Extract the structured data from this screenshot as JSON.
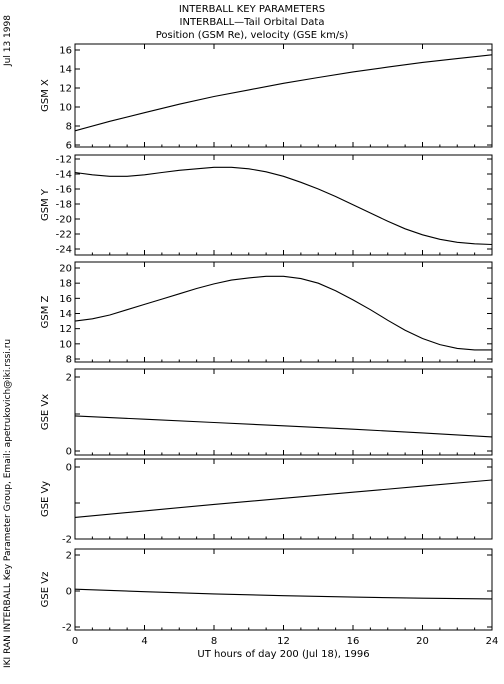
{
  "header": {
    "line1": "INTERBALL KEY PARAMETERS",
    "line2": "INTERBALL—Tail Orbital Data",
    "line3": "Position (GSM Re), velocity (GSE km/s)"
  },
  "side": {
    "date": "Jul 13 1998",
    "credit": "IKI RAN INTERBALL Key Parameter Group, Email: apetrukovich@iki.rssi.ru"
  },
  "chart_data": {
    "type": "line",
    "xlabel": "UT hours of day 200 (Jul 18), 1996",
    "xlim": [
      0,
      24
    ],
    "xticks": [
      "0",
      "4",
      "8",
      "12",
      "16",
      "20",
      "24"
    ],
    "xtick_values": [
      0,
      4,
      8,
      12,
      16,
      20,
      24
    ],
    "panels": [
      {
        "ylabel": "GSM X",
        "ylim": [
          6,
          16
        ],
        "yticks": [
          "6",
          "8",
          "10",
          "12",
          "14",
          "16"
        ],
        "ytick_values": [
          6,
          8,
          10,
          12,
          14,
          16
        ],
        "x": [
          0,
          2,
          4,
          6,
          8,
          10,
          12,
          14,
          16,
          18,
          20,
          22,
          24
        ],
        "y": [
          7.5,
          8.5,
          9.4,
          10.3,
          11.1,
          11.8,
          12.5,
          13.1,
          13.7,
          14.2,
          14.7,
          15.1,
          15.5
        ]
      },
      {
        "ylabel": "GSM Y",
        "ylim": [
          -24,
          -12
        ],
        "yticks": [
          "-24",
          "-22",
          "-20",
          "-18",
          "-16",
          "-14",
          "-12"
        ],
        "ytick_values": [
          -24,
          -22,
          -20,
          -18,
          -16,
          -14,
          -12
        ],
        "x": [
          0,
          1,
          2,
          3,
          4,
          5,
          6,
          7,
          8,
          9,
          10,
          11,
          12,
          13,
          14,
          15,
          16,
          17,
          18,
          19,
          20,
          21,
          22,
          23,
          24
        ],
        "y": [
          -13.8,
          -14.1,
          -14.3,
          -14.3,
          -14.1,
          -13.8,
          -13.5,
          -13.3,
          -13.1,
          -13.1,
          -13.3,
          -13.7,
          -14.3,
          -15.1,
          -16.0,
          -17.0,
          -18.1,
          -19.2,
          -20.3,
          -21.3,
          -22.1,
          -22.7,
          -23.1,
          -23.3,
          -23.4
        ]
      },
      {
        "ylabel": "GSM Z",
        "ylim": [
          8,
          20
        ],
        "yticks": [
          "8",
          "10",
          "12",
          "14",
          "16",
          "18",
          "20"
        ],
        "ytick_values": [
          8,
          10,
          12,
          14,
          16,
          18,
          20
        ],
        "x": [
          0,
          1,
          2,
          3,
          4,
          5,
          6,
          7,
          8,
          9,
          10,
          11,
          12,
          13,
          14,
          15,
          16,
          17,
          18,
          19,
          20,
          21,
          22,
          23,
          24
        ],
        "y": [
          13.0,
          13.3,
          13.8,
          14.5,
          15.2,
          15.9,
          16.6,
          17.3,
          17.9,
          18.4,
          18.7,
          18.9,
          18.9,
          18.6,
          18.0,
          17.0,
          15.8,
          14.5,
          13.1,
          11.8,
          10.7,
          9.9,
          9.4,
          9.2,
          9.2
        ]
      },
      {
        "ylabel": "GSE Vx",
        "ylim": [
          0,
          2
        ],
        "yticks": [
          "0",
          "",
          "2"
        ],
        "ytick_values": [
          0,
          1,
          2
        ],
        "x": [
          0,
          4,
          8,
          12,
          16,
          20,
          24
        ],
        "y": [
          0.95,
          0.86,
          0.77,
          0.68,
          0.59,
          0.49,
          0.38
        ]
      },
      {
        "ylabel": "GSE Vy",
        "ylim": [
          -2,
          0
        ],
        "yticks": [
          "-2",
          "",
          "0"
        ],
        "ytick_values": [
          -2,
          -1,
          0
        ],
        "x": [
          0,
          4,
          8,
          12,
          16,
          20,
          24
        ],
        "y": [
          -1.4,
          -1.22,
          -1.04,
          -0.87,
          -0.7,
          -0.53,
          -0.36
        ]
      },
      {
        "ylabel": "GSE Vz",
        "ylim": [
          -2,
          2
        ],
        "yticks": [
          "-2",
          "0",
          "2"
        ],
        "ytick_values": [
          -2,
          0,
          2
        ],
        "x": [
          0,
          4,
          8,
          12,
          16,
          20,
          24
        ],
        "y": [
          0.1,
          -0.04,
          -0.16,
          -0.26,
          -0.34,
          -0.4,
          -0.44
        ]
      }
    ]
  }
}
